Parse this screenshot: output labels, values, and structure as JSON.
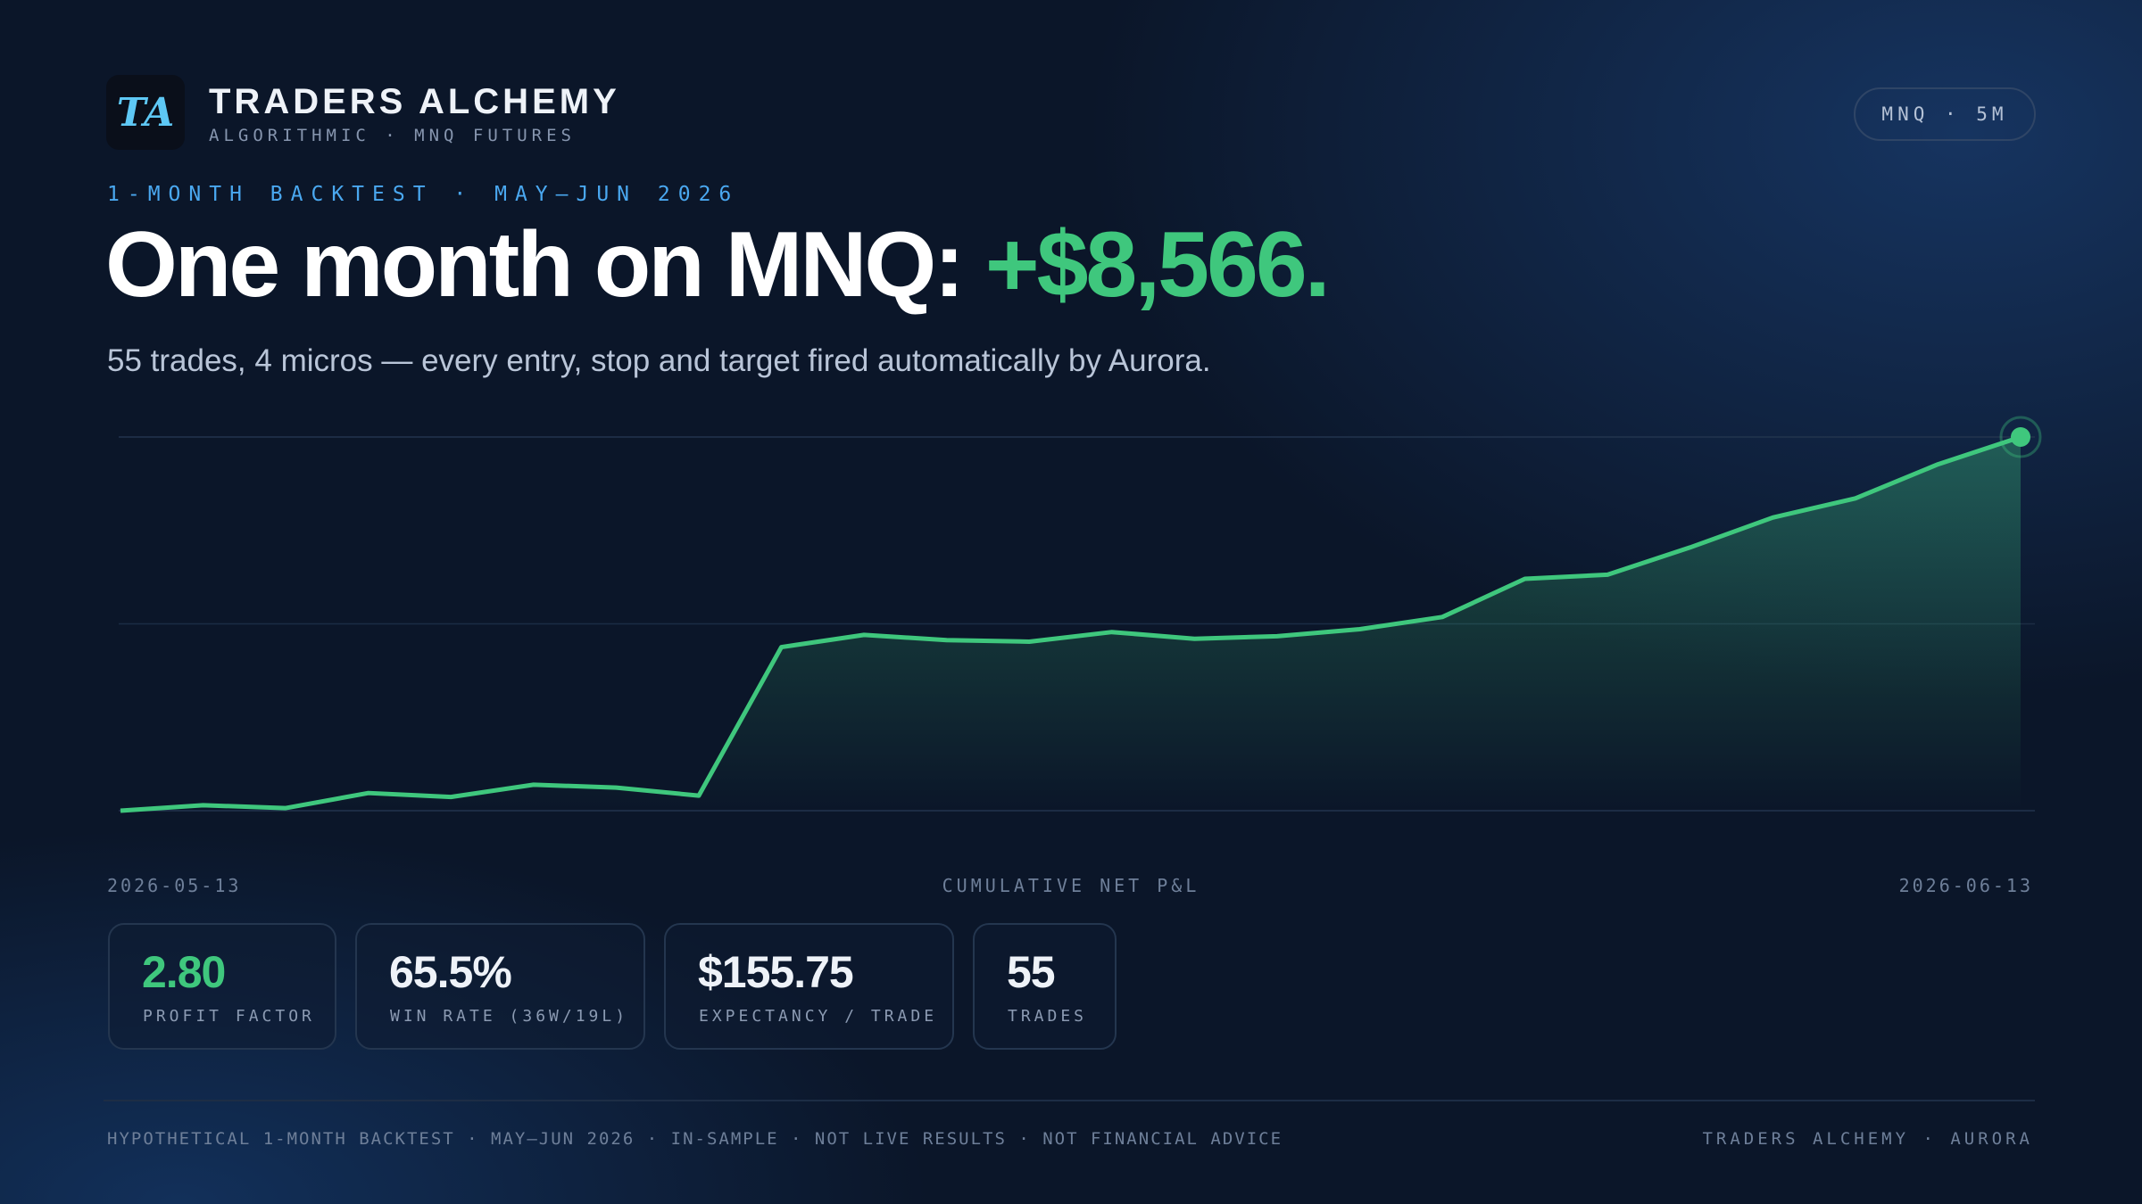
{
  "header": {
    "logo": "TA",
    "brand": "TRADERS ALCHEMY",
    "tagline": "ALGORITHMIC · MNQ FUTURES",
    "badge": "MNQ · 5M"
  },
  "eyebrow": "1-MONTH BACKTEST · MAY–JUN 2026",
  "headline": {
    "text": "One month on MNQ: ",
    "highlight": "+$8,566."
  },
  "subheadline": "55 trades, 4 micros — every entry, stop and target fired automatically by Aurora.",
  "chart_data": {
    "type": "line",
    "x_label": "CUMULATIVE NET P&L",
    "categories": [
      "2026-05-13",
      null,
      null,
      null,
      null,
      null,
      null,
      null,
      null,
      null,
      null,
      null,
      null,
      null,
      null,
      null,
      null,
      null,
      null,
      null,
      null,
      null,
      null,
      "2026-06-13"
    ],
    "values": [
      0,
      125,
      60,
      405,
      315,
      595,
      530,
      345,
      3750,
      4030,
      3910,
      3875,
      4095,
      3940,
      4000,
      4160,
      4440,
      5315,
      5410,
      6035,
      6720,
      7160,
      7940,
      8566
    ],
    "color": "#3fc77d",
    "ylim": [
      0,
      8566
    ],
    "grid": true
  },
  "stats": [
    {
      "value": "2.80",
      "label": "PROFIT FACTOR"
    },
    {
      "value": "65.5%",
      "label": "WIN RATE (36W/19L)"
    },
    {
      "value": "$155.75",
      "label": "EXPECTANCY / TRADE"
    },
    {
      "value": "55",
      "label": "TRADES"
    }
  ],
  "footer": {
    "disclaimer": "HYPOTHETICAL 1-MONTH BACKTEST · MAY–JUN 2026 · IN-SAMPLE · NOT LIVE RESULTS · NOT FINANCIAL ADVICE",
    "brand": "TRADERS ALCHEMY · AURORA"
  }
}
